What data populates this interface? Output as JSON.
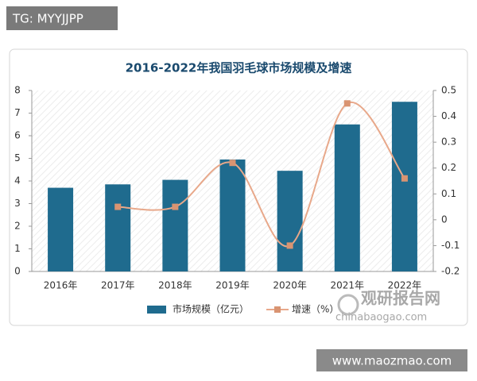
{
  "chart_data": {
    "type": "bar_line",
    "title": "2016-2022年我国羽毛球市场规模及增速",
    "categories": [
      "2016年",
      "2017年",
      "2018年",
      "2019年",
      "2020年",
      "2021年",
      "2022年"
    ],
    "series": [
      {
        "name": "市场规模（亿元）",
        "type": "bar",
        "color": "#1f6b8e",
        "values": [
          3.7,
          3.85,
          4.05,
          4.95,
          4.45,
          6.5,
          7.5
        ]
      },
      {
        "name": "增速（%）",
        "type": "line",
        "axis": "y2",
        "color": "#e8a88a",
        "marker_color": "#d99472",
        "smooth": true,
        "values": [
          null,
          0.05,
          0.05,
          0.22,
          -0.1,
          0.45,
          0.16
        ]
      }
    ],
    "ylim": [
      0,
      8
    ],
    "yticks": [
      0,
      1,
      2,
      3,
      4,
      5,
      6,
      7,
      8
    ],
    "y2lim": [
      -0.2,
      0.5
    ],
    "y2ticks": [
      -0.2,
      -0.1,
      0,
      0.1,
      0.2,
      0.3,
      0.4,
      0.5
    ],
    "legend": "bottom"
  },
  "watermarks": {
    "top_left": "TG: MYYJJPP",
    "logo": "观研报告网",
    "logo_url": "chinabaogao.com",
    "bottom_right": "www.maozmao.com"
  }
}
